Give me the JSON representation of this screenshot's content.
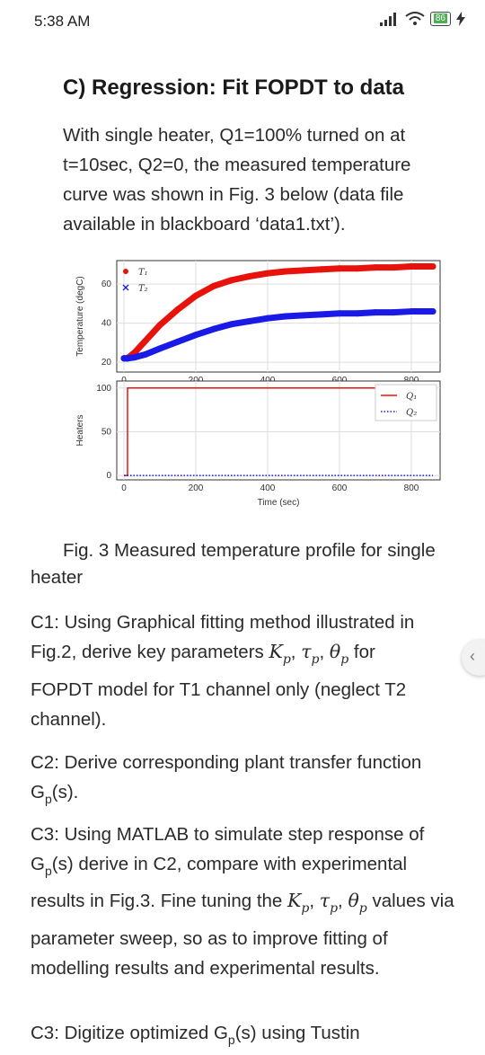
{
  "status": {
    "time": "5:38 AM",
    "battery": "86"
  },
  "heading": "C) Regression: Fit  FOPDT to data",
  "intro": "With single heater, Q1=100% turned on at t=10sec, Q2=0, the measured temperature curve was shown in Fig. 3 below (data file available in blackboard ‘data1.txt’).",
  "caption": "Fig. 3 Measured temperature profile for single heater",
  "c1": {
    "before": "C1: Using Graphical fitting method illustrated in Fig.2, derive key parameters ",
    "k": "K",
    "tau": "τ",
    "theta": "θ",
    "sub": "p",
    "after_params": " for",
    "after": "FOPDT model for T1 channel only (neglect T2 channel)."
  },
  "c2": {
    "text": "C2: Derive corresponding plant transfer function G",
    "sub": "p",
    "end": "(s)."
  },
  "c3": {
    "before": "C3: Using MATLAB to simulate step response of G",
    "sub": "p",
    "mid": "(s) derive in C2, compare with experimental results in Fig.3. Fine tuning the ",
    "after": " values via parameter sweep, so as to improve fitting of modelling results and experimental results."
  },
  "c4": {
    "text": "C3: Digitize optimized G",
    "sub": "p",
    "end": "(s) using Tustin"
  },
  "chart_data": [
    {
      "type": "scatter",
      "ylabel": "Temperature (degC)",
      "xlabel": "",
      "x_ticks": [
        "0",
        "200",
        "400",
        "600",
        "800"
      ],
      "y_ticks": [
        "20",
        "40",
        "60"
      ],
      "xlim": [
        -20,
        880
      ],
      "ylim": [
        15,
        72
      ],
      "legend": "top-left",
      "series": [
        {
          "name": "T₁",
          "color": "#e8120c",
          "marker": "dot",
          "x": [
            0,
            10,
            30,
            60,
            100,
            150,
            200,
            250,
            300,
            350,
            400,
            450,
            500,
            550,
            600,
            650,
            700,
            750,
            800,
            860
          ],
          "y": [
            22,
            22,
            25,
            31,
            39,
            47,
            54,
            59,
            62,
            64,
            65.5,
            66.5,
            67,
            67.5,
            68,
            68,
            68.5,
            68.5,
            69,
            69
          ]
        },
        {
          "name": "T₂",
          "color": "#1a1ae6",
          "marker": "x",
          "x": [
            0,
            10,
            30,
            60,
            100,
            150,
            200,
            250,
            300,
            350,
            400,
            450,
            500,
            550,
            600,
            650,
            700,
            750,
            800,
            860
          ],
          "y": [
            22,
            22,
            22.5,
            24,
            27,
            30.5,
            34,
            37,
            39.5,
            41,
            42.5,
            43.5,
            44,
            44.5,
            45,
            45,
            45.5,
            45.5,
            46,
            46
          ]
        }
      ]
    },
    {
      "type": "line",
      "ylabel": "Heaters",
      "xlabel": "Time (sec)",
      "x_ticks": [
        "0",
        "200",
        "400",
        "600",
        "800"
      ],
      "y_ticks": [
        "0",
        "50",
        "100"
      ],
      "xlim": [
        -20,
        880
      ],
      "ylim": [
        -5,
        108
      ],
      "legend": "top-right",
      "series": [
        {
          "name": "Q₁",
          "color": "#e8120c",
          "style": "solid",
          "x": [
            0,
            10,
            10,
            860
          ],
          "y": [
            0,
            0,
            100,
            100
          ]
        },
        {
          "name": "Q₂",
          "color": "#1a1ae6",
          "style": "dotted",
          "x": [
            0,
            860
          ],
          "y": [
            0,
            0
          ]
        }
      ]
    }
  ]
}
